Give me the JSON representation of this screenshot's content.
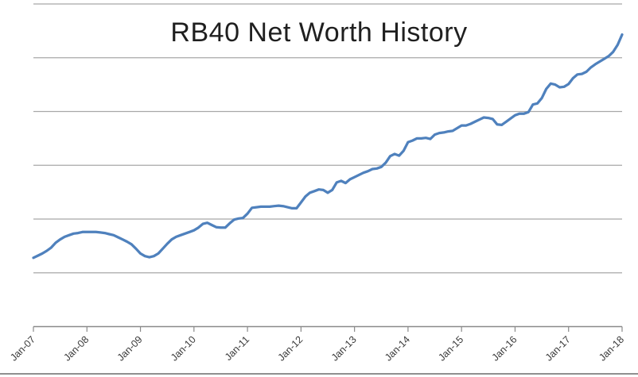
{
  "chart_data": {
    "type": "line",
    "title": "RB40 Net Worth History",
    "xlabel": "",
    "ylabel": "",
    "legend": "none",
    "grid": "horizontal",
    "x_tick_labels": [
      "Jan-07",
      "Jan-08",
      "Jan-09",
      "Jan-10",
      "Jan-11",
      "Jan-12",
      "Jan-13",
      "Jan-14",
      "Jan-15",
      "Jan-16",
      "Jan-17",
      "Jan-18"
    ],
    "y_axis": {
      "labels_visible": false,
      "min": 0,
      "max": 6,
      "note": "no numeric y-axis labels shown; values estimated in gridline units above the x-axis (1 unit = one gridline step)"
    },
    "series": [
      {
        "cadence": "monthly",
        "start_label": "Jan-07",
        "end_label": "Jan-18",
        "values_grid_units": [
          1.28,
          1.32,
          1.36,
          1.41,
          1.47,
          1.56,
          1.62,
          1.67,
          1.7,
          1.73,
          1.74,
          1.76,
          1.76,
          1.76,
          1.76,
          1.75,
          1.74,
          1.72,
          1.7,
          1.66,
          1.62,
          1.58,
          1.53,
          1.45,
          1.36,
          1.31,
          1.29,
          1.31,
          1.36,
          1.45,
          1.54,
          1.62,
          1.67,
          1.7,
          1.73,
          1.76,
          1.79,
          1.84,
          1.91,
          1.93,
          1.89,
          1.85,
          1.84,
          1.84,
          1.92,
          1.99,
          2.01,
          2.02,
          2.1,
          2.21,
          2.22,
          2.23,
          2.23,
          2.23,
          2.24,
          2.25,
          2.24,
          2.22,
          2.2,
          2.2,
          2.31,
          2.42,
          2.49,
          2.52,
          2.55,
          2.54,
          2.49,
          2.54,
          2.68,
          2.71,
          2.67,
          2.74,
          2.78,
          2.82,
          2.86,
          2.89,
          2.93,
          2.94,
          2.97,
          3.05,
          3.17,
          3.21,
          3.18,
          3.27,
          3.43,
          3.46,
          3.5,
          3.5,
          3.51,
          3.49,
          3.57,
          3.6,
          3.61,
          3.63,
          3.64,
          3.69,
          3.74,
          3.74,
          3.77,
          3.81,
          3.85,
          3.89,
          3.88,
          3.86,
          3.76,
          3.75,
          3.81,
          3.87,
          3.93,
          3.96,
          3.96,
          3.99,
          4.13,
          4.15,
          4.25,
          4.42,
          4.52,
          4.5,
          4.45,
          4.46,
          4.51,
          4.62,
          4.69,
          4.7,
          4.74,
          4.82,
          4.88,
          4.93,
          4.98,
          5.03,
          5.11,
          5.24,
          5.43
        ]
      }
    ]
  },
  "style": {
    "line_color": "#4f81bd",
    "grid_color": "#a8a8a8",
    "axis_color": "#8a8a8a",
    "tick_label_color": "#3b3b3b",
    "title_color": "#1f1f1f",
    "background": "#ffffff",
    "bottom_border_color": "#8f8f8f"
  }
}
